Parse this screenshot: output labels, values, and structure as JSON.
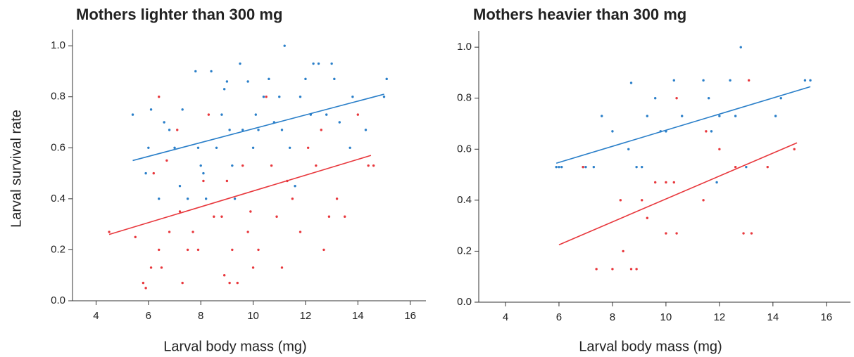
{
  "chart_data": [
    {
      "type": "scatter",
      "title": "Mothers lighter than 300 mg",
      "xlabel": "Larval body mass (mg)",
      "ylabel": "Larval survival rate",
      "xlim": [
        3.1,
        16.6
      ],
      "ylim": [
        0,
        1.05
      ],
      "xticks": [
        4,
        6,
        8,
        10,
        12,
        14,
        16
      ],
      "yticks": [
        {
          "value": 0,
          "label": "0.0"
        },
        0.2,
        0.4,
        0.6,
        0.8,
        {
          "value": 1,
          "label": "1.0"
        }
      ],
      "series": [
        {
          "color": "#2a7fc9",
          "x": [
            5.4,
            6,
            6.1,
            5.9,
            6.4,
            6.6,
            6.8,
            7,
            7.2,
            7.3,
            7.5,
            7.8,
            7.9,
            8,
            8.1,
            8.2,
            8.4,
            8.6,
            8.8,
            8.9,
            9,
            9.1,
            9.2,
            9.3,
            9.5,
            9.6,
            9.8,
            10,
            10.1,
            10.2,
            10.4,
            10.6,
            10.8,
            11,
            11.1,
            11.2,
            11.4,
            11.6,
            11.8,
            12,
            12.2,
            12.3,
            12.5,
            12.8,
            13,
            13.1,
            13.3,
            13.8,
            14.3,
            15,
            15.1,
            13.7
          ],
          "values": [
            0.73,
            0.6,
            0.75,
            0.5,
            0.4,
            0.7,
            0.67,
            0.6,
            0.45,
            0.75,
            0.4,
            0.9,
            0.6,
            0.53,
            0.5,
            0.4,
            0.9,
            0.6,
            0.73,
            0.83,
            0.86,
            0.67,
            0.53,
            0.4,
            0.93,
            0.67,
            0.86,
            0.6,
            0.73,
            0.67,
            0.8,
            0.87,
            0.7,
            0.8,
            0.67,
            1.0,
            0.6,
            0.45,
            0.8,
            0.87,
            0.73,
            0.93,
            0.93,
            0.73,
            0.93,
            0.87,
            0.7,
            0.8,
            0.67,
            0.8,
            0.87,
            0.6
          ]
        },
        {
          "color": "#e8383d",
          "x": [
            4.5,
            5.5,
            5.8,
            5.9,
            6.1,
            6.2,
            6.4,
            6.4,
            6.5,
            6.7,
            6.8,
            7.1,
            7.2,
            7.3,
            7.5,
            7.7,
            7.9,
            8.1,
            8.3,
            8.5,
            8.8,
            8.9,
            9,
            9.1,
            9.2,
            9.4,
            9.6,
            9.8,
            9.9,
            10,
            10.2,
            10.5,
            10.7,
            10.9,
            11.1,
            11.3,
            11.5,
            11.8,
            12.1,
            12.4,
            12.7,
            12.9,
            13.2,
            13.5,
            14,
            14.4,
            14.6,
            12.6
          ],
          "values": [
            0.27,
            0.25,
            0.07,
            0.05,
            0.13,
            0.5,
            0.8,
            0.2,
            0.13,
            0.55,
            0.27,
            0.67,
            0.35,
            0.07,
            0.2,
            0.27,
            0.2,
            0.47,
            0.73,
            0.33,
            0.33,
            0.1,
            0.47,
            0.07,
            0.2,
            0.07,
            0.53,
            0.27,
            0.35,
            0.13,
            0.2,
            0.8,
            0.53,
            0.33,
            0.13,
            0.47,
            0.4,
            0.27,
            0.6,
            0.53,
            0.2,
            0.33,
            0.4,
            0.33,
            0.73,
            0.53,
            0.53,
            0.67
          ]
        }
      ],
      "lines": [
        {
          "color": "#2a7fc9",
          "x": [
            5.4,
            15
          ],
          "values": [
            0.55,
            0.81
          ]
        },
        {
          "color": "#e8383d",
          "x": [
            4.5,
            14.5
          ],
          "values": [
            0.26,
            0.57
          ]
        }
      ]
    },
    {
      "type": "scatter",
      "title": "Mothers heavier than 300 mg",
      "xlabel": "Larval body mass (mg)",
      "xlim": [
        3.0,
        16.9
      ],
      "ylim": [
        0,
        1.05
      ],
      "xticks": [
        4,
        6,
        8,
        10,
        12,
        14,
        16
      ],
      "yticks": [
        {
          "value": 0,
          "label": "0.0"
        },
        0.2,
        0.4,
        0.6,
        0.8,
        {
          "value": 1,
          "label": "1.0"
        }
      ],
      "series": [
        {
          "color": "#2a7fc9",
          "x": [
            5.9,
            6,
            6.1,
            6.9,
            7,
            7.3,
            7.6,
            8,
            8.6,
            8.7,
            8.9,
            9.1,
            9.3,
            9.6,
            9.8,
            10,
            10.3,
            10.6,
            11.4,
            11.6,
            11.7,
            12,
            11.9,
            12.4,
            12.6,
            12.8,
            13,
            14.1,
            14.3,
            15.2,
            15.4
          ],
          "values": [
            0.53,
            0.53,
            0.53,
            0.53,
            0.53,
            0.53,
            0.73,
            0.67,
            0.6,
            0.86,
            0.53,
            0.53,
            0.73,
            0.8,
            0.67,
            0.67,
            0.87,
            0.73,
            0.87,
            0.8,
            0.67,
            0.73,
            0.47,
            0.87,
            0.73,
            1.0,
            0.53,
            0.73,
            0.8,
            0.87,
            0.87
          ]
        },
        {
          "color": "#e8383d",
          "x": [
            6.9,
            7.4,
            8,
            8.3,
            8.4,
            8.7,
            8.9,
            9.1,
            9.3,
            9.6,
            10,
            10,
            10.3,
            10.4,
            10.4,
            11.4,
            11.5,
            12,
            12.6,
            12.9,
            13.1,
            13.2,
            13.8,
            14.8
          ],
          "values": [
            0.53,
            0.13,
            0.13,
            0.4,
            0.2,
            0.13,
            0.13,
            0.4,
            0.33,
            0.47,
            0.27,
            0.47,
            0.47,
            0.27,
            0.8,
            0.4,
            0.67,
            0.6,
            0.53,
            0.27,
            0.87,
            0.27,
            0.53,
            0.6
          ]
        }
      ],
      "lines": [
        {
          "color": "#2a7fc9",
          "x": [
            5.9,
            15.4
          ],
          "values": [
            0.545,
            0.845
          ]
        },
        {
          "color": "#e8383d",
          "x": [
            6,
            14.9
          ],
          "values": [
            0.225,
            0.625
          ]
        }
      ]
    }
  ]
}
